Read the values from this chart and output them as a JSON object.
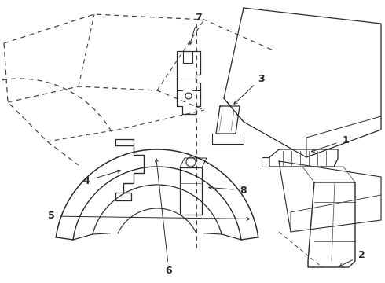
{
  "bg_color": "#ffffff",
  "lc": "#2a2a2a",
  "fig_width": 4.9,
  "fig_height": 3.6,
  "dpi": 100
}
